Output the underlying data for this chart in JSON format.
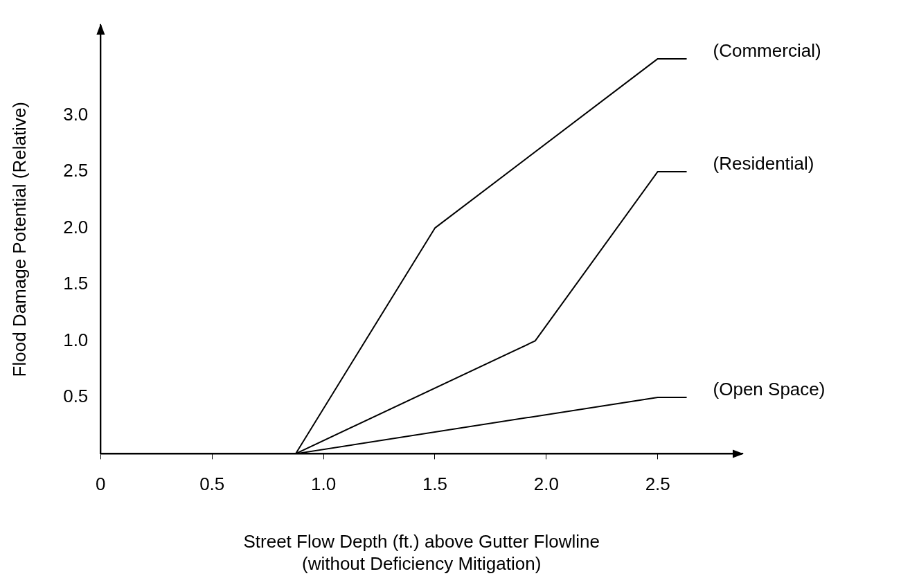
{
  "chart_data": {
    "type": "line",
    "xlabel": "Street Flow Depth (ft.) above Gutter Flowline\n(without Deficiency Mitigation)",
    "ylabel": "Flood Damage Potential (Relative)",
    "xlim": [
      0,
      2.88
    ],
    "ylim": [
      0,
      3.8
    ],
    "xticks": [
      0,
      {
        "value": 0.5,
        "label": "0.5"
      },
      {
        "value": 1,
        "label": "1.0"
      },
      {
        "value": 1.5,
        "label": "1.5"
      },
      {
        "value": 2,
        "label": "2.0"
      },
      {
        "value": 2.5,
        "label": "2.5"
      }
    ],
    "yticks": [
      {
        "value": 0.5,
        "label": "0.5"
      },
      {
        "value": 1,
        "label": "1.0"
      },
      {
        "value": 1.5,
        "label": "1.5"
      },
      {
        "value": 2,
        "label": "2.0"
      },
      {
        "value": 2.5,
        "label": "2.5"
      },
      {
        "value": 3,
        "label": "3.0"
      }
    ],
    "grid": false,
    "legend": false,
    "marker": "none",
    "line_style": "solid",
    "series": [
      {
        "name": "(Commercial)",
        "color": "#000000",
        "x": [
          0.875,
          1.5,
          2.5,
          2.63
        ],
        "values": [
          0,
          2.0,
          3.5,
          3.5
        ]
      },
      {
        "name": "(Residential)",
        "color": "#000000",
        "x": [
          0.875,
          1.95,
          2.5,
          2.63
        ],
        "values": [
          0,
          1.0,
          2.5,
          2.5
        ]
      },
      {
        "name": "(Open Space)",
        "color": "#000000",
        "x": [
          0.875,
          2.5,
          2.63
        ],
        "values": [
          0,
          0.5,
          0.5
        ]
      }
    ]
  }
}
